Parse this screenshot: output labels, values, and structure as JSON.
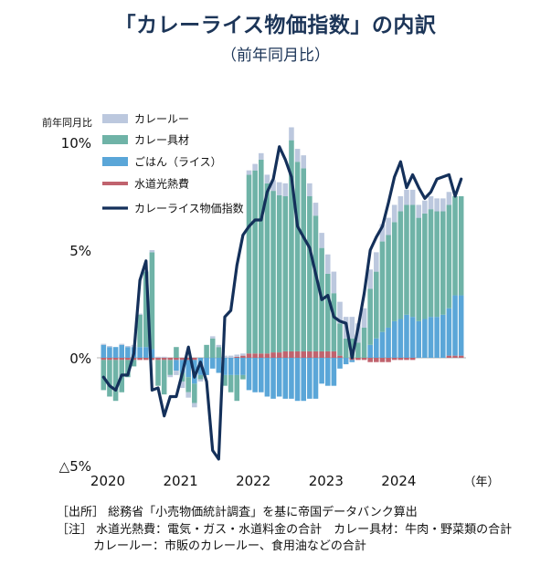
{
  "title": "「カレーライス物価指数」の内訳",
  "subtitle": "（前年同月比）",
  "notes": {
    "source": "［出所］ 総務省「小売物価統計調査」を基に帝国データバンク算出",
    "note1": "［注］ 水道光熱費：電気・ガス・水道料金の合計　カレー具材：牛肉・野菜類の合計",
    "note2": "カレールー：市販のカレールー、食用油などの合計"
  },
  "colors": {
    "roux": "#bcc8de",
    "ingredients": "#6fb3a7",
    "rice": "#5aa6d8",
    "utility": "#c0636e",
    "index": "#14305a"
  },
  "chart_data": {
    "type": "bar",
    "stacked": true,
    "title": "「カレーライス物価指数」の内訳",
    "subtitle": "（前年同月比）",
    "ylabel": "前年同月比",
    "xlabel": "（年）",
    "ylim": [
      -5,
      11
    ],
    "yticks": [
      {
        "value": 10,
        "label": "10%"
      },
      {
        "value": 5,
        "label": "5%"
      },
      {
        "value": 0,
        "label": "0%"
      },
      {
        "value": -5,
        "label": "△5%"
      }
    ],
    "x_year_labels": [
      {
        "label": "2020",
        "index": 0
      },
      {
        "label": "2021",
        "index": 12
      },
      {
        "label": "2022",
        "index": 24
      },
      {
        "label": "2023",
        "index": 36
      },
      {
        "label": "2024",
        "index": 48
      }
    ],
    "x_unit_label": "（年）",
    "categories": [
      "2020-01",
      "2020-02",
      "2020-03",
      "2020-04",
      "2020-05",
      "2020-06",
      "2020-07",
      "2020-08",
      "2020-09",
      "2020-10",
      "2020-11",
      "2020-12",
      "2021-01",
      "2021-02",
      "2021-03",
      "2021-04",
      "2021-05",
      "2021-06",
      "2021-07",
      "2021-08",
      "2021-09",
      "2021-10",
      "2021-11",
      "2021-12",
      "2022-01",
      "2022-02",
      "2022-03",
      "2022-04",
      "2022-05",
      "2022-06",
      "2022-07",
      "2022-08",
      "2022-09",
      "2022-10",
      "2022-11",
      "2022-12",
      "2023-01",
      "2023-02",
      "2023-03",
      "2023-04",
      "2023-05",
      "2023-06",
      "2023-07",
      "2023-08",
      "2023-09",
      "2023-10",
      "2023-11",
      "2023-12",
      "2024-01",
      "2024-02",
      "2024-03",
      "2024-04",
      "2024-05",
      "2024-06",
      "2024-07",
      "2024-08",
      "2024-09",
      "2024-10",
      "2024-11",
      "2024-12"
    ],
    "series": [
      {
        "name": "カレールー",
        "type": "bar",
        "values": [
          0.05,
          0.05,
          0.0,
          0.05,
          0.05,
          0.1,
          0.05,
          0.05,
          0.1,
          0.05,
          0.05,
          -0.1,
          -0.2,
          -0.3,
          -0.25,
          -0.2,
          -0.1,
          0.0,
          0.1,
          0.1,
          0.1,
          0.1,
          0.1,
          0.1,
          0.2,
          0.3,
          0.3,
          0.4,
          0.5,
          0.6,
          0.6,
          0.6,
          0.6,
          0.6,
          0.6,
          0.6,
          0.7,
          0.9,
          1.0,
          1.0,
          1.0,
          1.0,
          0.9,
          0.9,
          0.9,
          0.9,
          0.8,
          0.8,
          0.8,
          0.7,
          0.7,
          0.7,
          0.6,
          0.6,
          0.6,
          0.6,
          0.6,
          0.6,
          0.0,
          0.0
        ]
      },
      {
        "name": "カレー具材",
        "type": "bar",
        "values": [
          -1.4,
          -1.7,
          -1.9,
          -1.5,
          -0.8,
          -0.3,
          1.5,
          3.5,
          4.5,
          -1.2,
          -1.6,
          -0.7,
          0.5,
          -0.4,
          -0.7,
          -0.9,
          -0.2,
          0.6,
          0.9,
          0.5,
          -0.5,
          -0.8,
          -1.2,
          -0.2,
          8.3,
          8.5,
          9.0,
          7.9,
          7.5,
          7.3,
          7.2,
          9.8,
          8.8,
          8.5,
          7.2,
          6.3,
          4.8,
          3.6,
          2.7,
          1.5,
          0.9,
          0.9,
          0.7,
          1.4,
          2.6,
          3.1,
          4.2,
          4.3,
          4.6,
          5.0,
          5.1,
          5.2,
          4.8,
          4.9,
          5.0,
          4.9,
          4.8,
          4.8,
          4.6,
          4.6
        ]
      },
      {
        "name": "ごはん（ライス）",
        "type": "bar",
        "values": [
          0.6,
          0.5,
          0.5,
          0.6,
          0.5,
          0.5,
          0.5,
          0.5,
          0.4,
          0.0,
          0.0,
          0.0,
          -0.5,
          -0.6,
          -0.8,
          -1.1,
          -0.8,
          -0.8,
          -0.5,
          -0.7,
          -0.8,
          -0.8,
          -0.8,
          -0.8,
          -1.5,
          -1.6,
          -1.6,
          -1.8,
          -1.9,
          -1.8,
          -1.9,
          -1.9,
          -2.0,
          -2.0,
          -1.9,
          -1.9,
          -1.2,
          -1.3,
          -1.3,
          -0.5,
          -0.3,
          -0.1,
          0.0,
          0.0,
          0.6,
          0.9,
          1.2,
          1.4,
          1.7,
          1.8,
          2.0,
          1.9,
          1.7,
          1.8,
          1.9,
          1.9,
          2.0,
          2.2,
          2.8,
          2.8
        ]
      },
      {
        "name": "水道光熱費",
        "type": "bar",
        "values": [
          -0.1,
          -0.1,
          -0.1,
          -0.1,
          -0.1,
          -0.1,
          -0.1,
          -0.1,
          -0.1,
          -0.1,
          -0.1,
          -0.1,
          -0.1,
          -0.1,
          -0.1,
          -0.1,
          0.0,
          0.0,
          0.0,
          0.0,
          0.0,
          0.0,
          0.05,
          0.1,
          0.2,
          0.2,
          0.2,
          0.2,
          0.25,
          0.25,
          0.3,
          0.3,
          0.3,
          0.3,
          0.3,
          0.3,
          0.3,
          0.3,
          0.3,
          0.1,
          0.0,
          -0.1,
          -0.1,
          -0.1,
          -0.2,
          -0.2,
          -0.2,
          -0.2,
          -0.1,
          -0.1,
          -0.1,
          -0.1,
          0.0,
          0.0,
          0.0,
          0.0,
          0.0,
          0.1,
          0.1,
          0.1
        ]
      },
      {
        "name": "カレーライス物価指数",
        "type": "line",
        "values": [
          -0.9,
          -1.3,
          -1.5,
          -0.8,
          -0.8,
          0.2,
          3.6,
          4.5,
          -1.5,
          -1.4,
          -2.7,
          -1.8,
          -1.8,
          -0.7,
          0.5,
          -0.9,
          -0.2,
          -1.1,
          -4.3,
          -4.7,
          1.9,
          2.2,
          4.3,
          5.7,
          6.1,
          6.4,
          6.4,
          7.7,
          8.3,
          9.8,
          9.2,
          8.4,
          6.1,
          5.6,
          5.1,
          3.9,
          2.7,
          2.9,
          1.9,
          1.7,
          1.6,
          0.0,
          1.4,
          3.0,
          5.0,
          5.6,
          6.1,
          7.2,
          8.4,
          9.1,
          7.9,
          8.5,
          7.9,
          7.4,
          7.7,
          8.3,
          8.4,
          8.5,
          7.5,
          8.3
        ]
      }
    ],
    "legend": {
      "position": "top-left",
      "items": [
        "カレールー",
        "カレー具材",
        "ごはん（ライス）",
        "水道光熱費",
        "カレーライス物価指数"
      ]
    }
  }
}
